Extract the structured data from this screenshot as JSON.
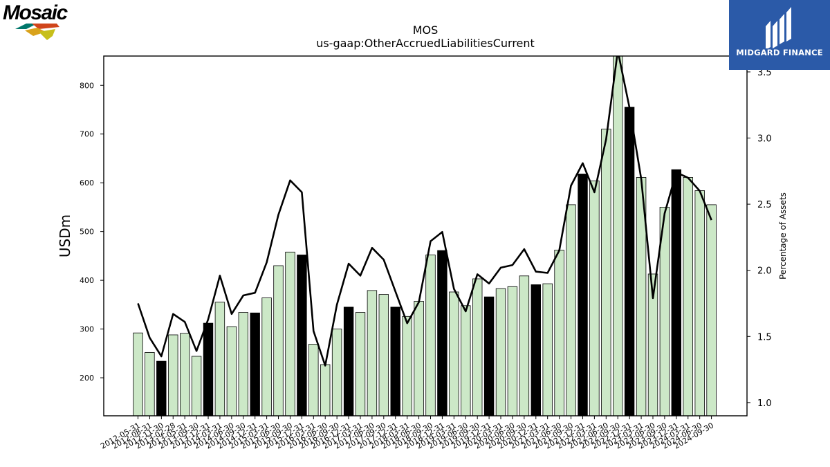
{
  "branding": {
    "left_logo_text": "Mosaic",
    "right_logo_text": "MIDGARD FINANCE"
  },
  "colors": {
    "bar_default": "#cce8c7",
    "bar_highlight": "#000000",
    "line": "#000000",
    "brand_blue": "#2b5aa8"
  },
  "chart_data": {
    "type": "bar",
    "title": "MOS",
    "subtitle": "us-gaap:OtherAccruedLiabilitiesCurrent",
    "ylabel": "USDm",
    "y2label": "Percentage of Assets",
    "ylim": [
      122,
      860
    ],
    "y2lim": [
      0.9,
      3.62
    ],
    "yticks": [
      200,
      300,
      400,
      500,
      600,
      700,
      800
    ],
    "y2ticks": [
      "1.0",
      "1.5",
      "2.0",
      "2.5",
      "3.0",
      "3.5"
    ],
    "categories": [
      "2012-05-31",
      "2012-08-31",
      "2012-11-30",
      "2013-02-28",
      "2013-05-31",
      "2013-09-30",
      "2013-12-31",
      "2014-03-31",
      "2014-06-30",
      "2014-09-30",
      "2014-12-31",
      "2015-03-31",
      "2015-06-30",
      "2015-09-30",
      "2015-12-31",
      "2016-03-31",
      "2016-06-30",
      "2016-09-30",
      "2016-12-31",
      "2017-03-31",
      "2017-06-30",
      "2017-09-30",
      "2017-12-31",
      "2018-03-31",
      "2018-06-30",
      "2018-09-30",
      "2018-12-31",
      "2019-03-31",
      "2019-06-30",
      "2019-09-30",
      "2019-12-31",
      "2020-03-31",
      "2020-06-30",
      "2020-09-30",
      "2020-12-31",
      "2021-03-31",
      "2021-06-30",
      "2021-09-30",
      "2021-12-31",
      "2022-03-31",
      "2022-06-30",
      "2022-09-30",
      "2022-12-31",
      "2023-03-31",
      "2023-06-30",
      "2023-09-30",
      "2023-12-31",
      "2024-03-31",
      "2024-06-30",
      "2024-09-30"
    ],
    "values": [
      292,
      252,
      234,
      288,
      291,
      244,
      312,
      355,
      305,
      334,
      333,
      364,
      430,
      458,
      452,
      269,
      227,
      300,
      345,
      334,
      379,
      371,
      345,
      326,
      357,
      452,
      461,
      376,
      348,
      403,
      366,
      383,
      387,
      409,
      391,
      393,
      462,
      555,
      618,
      604,
      710,
      878,
      755,
      611,
      413,
      550,
      627,
      611,
      584,
      555
    ],
    "highlight": [
      false,
      false,
      true,
      false,
      false,
      false,
      true,
      false,
      false,
      false,
      true,
      false,
      false,
      false,
      true,
      false,
      false,
      false,
      true,
      false,
      false,
      false,
      true,
      false,
      false,
      false,
      true,
      false,
      false,
      false,
      true,
      false,
      false,
      false,
      true,
      false,
      false,
      false,
      true,
      false,
      false,
      false,
      true,
      false,
      false,
      false,
      true,
      false,
      false,
      false
    ],
    "series": [
      {
        "axis": "right",
        "values": [
          1.75,
          1.49,
          1.35,
          1.67,
          1.61,
          1.39,
          1.63,
          1.96,
          1.67,
          1.81,
          1.83,
          2.06,
          2.42,
          2.68,
          2.59,
          1.54,
          1.28,
          1.74,
          2.05,
          1.96,
          2.17,
          2.08,
          1.84,
          1.6,
          1.76,
          2.22,
          2.29,
          1.86,
          1.69,
          1.97,
          1.9,
          2.02,
          2.04,
          2.16,
          1.99,
          1.98,
          2.15,
          2.64,
          2.81,
          2.59,
          2.99,
          3.66,
          3.23,
          2.69,
          1.79,
          2.43,
          2.74,
          2.7,
          2.6,
          2.38
        ]
      }
    ],
    "grid": false,
    "legend": "none"
  }
}
